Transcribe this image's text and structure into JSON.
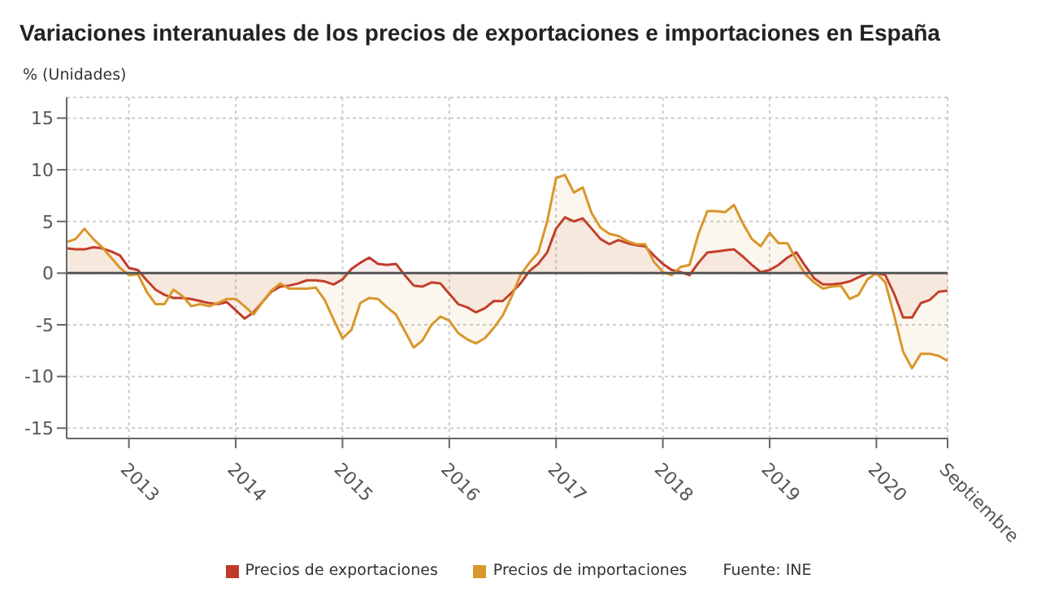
{
  "chart_data": {
    "type": "area",
    "title": "Variaciones interanuales de los precios de exportaciones e importaciones en España",
    "ylabel": "% (Unidades)",
    "x": [
      "2012-06",
      "2012-07",
      "2012-08",
      "2012-09",
      "2012-10",
      "2012-11",
      "2012-12",
      "2013-01",
      "2013-02",
      "2013-03",
      "2013-04",
      "2013-05",
      "2013-06",
      "2013-07",
      "2013-08",
      "2013-09",
      "2013-10",
      "2013-11",
      "2013-12",
      "2014-01",
      "2014-02",
      "2014-03",
      "2014-04",
      "2014-05",
      "2014-06",
      "2014-07",
      "2014-08",
      "2014-09",
      "2014-10",
      "2014-11",
      "2014-12",
      "2015-01",
      "2015-02",
      "2015-03",
      "2015-04",
      "2015-05",
      "2015-06",
      "2015-07",
      "2015-08",
      "2015-09",
      "2015-10",
      "2015-11",
      "2015-12",
      "2016-01",
      "2016-02",
      "2016-03",
      "2016-04",
      "2016-05",
      "2016-06",
      "2016-07",
      "2016-08",
      "2016-09",
      "2016-10",
      "2016-11",
      "2016-12",
      "2017-01",
      "2017-02",
      "2017-03",
      "2017-04",
      "2017-05",
      "2017-06",
      "2017-07",
      "2017-08",
      "2017-09",
      "2017-10",
      "2017-11",
      "2017-12",
      "2018-01",
      "2018-02",
      "2018-03",
      "2018-04",
      "2018-05",
      "2018-06",
      "2018-07",
      "2018-08",
      "2018-09",
      "2018-10",
      "2018-11",
      "2018-12",
      "2019-01",
      "2019-02",
      "2019-03",
      "2019-04",
      "2019-05",
      "2019-06",
      "2019-07",
      "2019-08",
      "2019-09",
      "2019-10",
      "2019-11",
      "2019-12",
      "2020-01",
      "2020-02",
      "2020-03",
      "2020-04",
      "2020-05",
      "2020-06",
      "2020-07",
      "2020-08",
      "2020-09"
    ],
    "series": [
      {
        "name": "Precios de exportaciones",
        "color": "#c0392b",
        "values": [
          2.4,
          2.3,
          2.3,
          2.5,
          2.4,
          2.1,
          1.7,
          0.5,
          0.3,
          -0.7,
          -1.6,
          -2.1,
          -2.4,
          -2.4,
          -2.5,
          -2.7,
          -2.9,
          -3.0,
          -2.8,
          -3.6,
          -4.4,
          -3.8,
          -2.8,
          -1.8,
          -1.3,
          -1.2,
          -1.0,
          -0.7,
          -0.7,
          -0.8,
          -1.1,
          -0.6,
          0.4,
          1.0,
          1.5,
          0.9,
          0.8,
          0.9,
          -0.2,
          -1.2,
          -1.3,
          -0.9,
          -1.0,
          -2.0,
          -3.0,
          -3.3,
          -3.8,
          -3.4,
          -2.7,
          -2.7,
          -1.9,
          -1.0,
          0.2,
          0.9,
          2.0,
          4.3,
          5.4,
          5.0,
          5.3,
          4.3,
          3.3,
          2.8,
          3.2,
          2.9,
          2.7,
          2.6,
          1.7,
          0.9,
          0.3,
          0.1,
          -0.2,
          1.0,
          2.0,
          2.1,
          2.2,
          2.3,
          1.6,
          0.8,
          0.1,
          0.3,
          0.8,
          1.5,
          2.0,
          0.7,
          -0.5,
          -1.1,
          -1.1,
          -1.0,
          -0.8,
          -0.4,
          0.0,
          0.0,
          -0.2,
          -2.0,
          -4.3,
          -4.3,
          -2.9,
          -2.6,
          -1.8,
          -1.7
        ]
      },
      {
        "name": "Precios de importaciones",
        "color": "#d9962b",
        "values": [
          3.0,
          3.3,
          4.3,
          3.3,
          2.5,
          1.5,
          0.5,
          -0.2,
          -0.1,
          -1.8,
          -3.0,
          -3.0,
          -1.6,
          -2.2,
          -3.2,
          -3.0,
          -3.2,
          -2.9,
          -2.5,
          -2.5,
          -3.2,
          -4.0,
          -2.8,
          -1.7,
          -1.0,
          -1.5,
          -1.5,
          -1.5,
          -1.4,
          -2.6,
          -4.5,
          -6.3,
          -5.5,
          -2.9,
          -2.4,
          -2.5,
          -3.3,
          -4.0,
          -5.6,
          -7.2,
          -6.5,
          -5.0,
          -4.2,
          -4.6,
          -5.8,
          -6.4,
          -6.8,
          -6.3,
          -5.3,
          -4.1,
          -2.3,
          -0.2,
          1.0,
          2.0,
          5.0,
          9.2,
          9.5,
          7.8,
          8.3,
          5.8,
          4.4,
          3.8,
          3.6,
          3.1,
          2.8,
          2.8,
          1.1,
          0.1,
          -0.2,
          0.6,
          0.8,
          3.8,
          6.0,
          6.0,
          5.9,
          6.6,
          4.8,
          3.3,
          2.6,
          3.9,
          2.9,
          2.9,
          1.3,
          -0.1,
          -0.9,
          -1.5,
          -1.3,
          -1.2,
          -2.5,
          -2.1,
          -0.6,
          0.0,
          -0.9,
          -4.1,
          -7.6,
          -9.2,
          -7.8,
          -7.8,
          -8.0,
          -8.5
        ]
      }
    ],
    "xlim": [
      "2012-06",
      "2020-09"
    ],
    "xticks": [
      {
        "value": "2013-01",
        "label": "2013"
      },
      {
        "value": "2014-01",
        "label": "2014"
      },
      {
        "value": "2015-01",
        "label": "2015"
      },
      {
        "value": "2016-01",
        "label": "2016"
      },
      {
        "value": "2017-01",
        "label": "2017"
      },
      {
        "value": "2018-01",
        "label": "2018"
      },
      {
        "value": "2019-01",
        "label": "2019"
      },
      {
        "value": "2020-01",
        "label": "2020"
      },
      {
        "value": "2020-09",
        "label": "Septiembre"
      }
    ],
    "ylim": [
      -16,
      17
    ],
    "yticks": [
      -15,
      -10,
      -5,
      0,
      5,
      10,
      15
    ],
    "ref_lines": [
      {
        "axis": "y",
        "value": 0,
        "color": "#555555"
      }
    ],
    "grid": true,
    "legend": "bottom",
    "annotations": [
      "Fuente: INE"
    ]
  }
}
